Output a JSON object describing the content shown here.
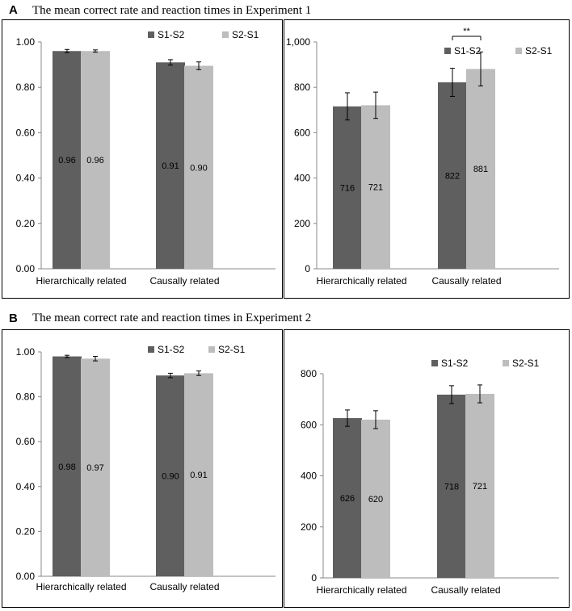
{
  "sections": [
    {
      "letter": "A",
      "title": "The mean correct rate and reaction times in Experiment 1"
    },
    {
      "letter": "B",
      "title": "The mean correct rate and reaction times in Experiment 2"
    }
  ],
  "colors": {
    "S1-S2": "#5f5f5f",
    "S2-S1": "#bdbdbd",
    "axis": "#888888"
  },
  "chart_data": [
    {
      "type": "bar",
      "categories": [
        "Hierarchically related",
        "Causally related"
      ],
      "series": [
        {
          "name": "S1-S2",
          "values": [
            0.96,
            0.91
          ],
          "errors": [
            0.007,
            0.012
          ],
          "labels": [
            "0.96",
            "0.91"
          ]
        },
        {
          "name": "S2-S1",
          "values": [
            0.96,
            0.895
          ],
          "errors": [
            0.005,
            0.017
          ],
          "labels": [
            "0.96",
            "0.90"
          ]
        }
      ],
      "ylim": [
        0,
        1.0
      ],
      "yticks": [
        "0.00",
        "0.20",
        "0.40",
        "0.60",
        "0.80",
        "1.00"
      ],
      "ytick_values": [
        0,
        0.2,
        0.4,
        0.6,
        0.8,
        1.0
      ],
      "legend": "top-right"
    },
    {
      "type": "bar",
      "categories": [
        "Hierarchically related",
        "Causally related"
      ],
      "series": [
        {
          "name": "S1-S2",
          "values": [
            716,
            822
          ],
          "errors": [
            60,
            62
          ],
          "labels": [
            "716",
            "822"
          ]
        },
        {
          "name": "S2-S1",
          "values": [
            721,
            881
          ],
          "errors": [
            58,
            75
          ],
          "labels": [
            "721",
            "881"
          ]
        }
      ],
      "ylim": [
        0,
        1000
      ],
      "yticks": [
        "0",
        "200",
        "400",
        "600",
        "800",
        "1,000"
      ],
      "ytick_values": [
        0,
        200,
        400,
        600,
        800,
        1000
      ],
      "legend": "top-right",
      "annotation": {
        "text": "**",
        "category_index": 1
      }
    },
    {
      "type": "bar",
      "categories": [
        "Hierarchically related",
        "Causally related"
      ],
      "series": [
        {
          "name": "S1-S2",
          "values": [
            0.98,
            0.895
          ],
          "errors": [
            0.005,
            0.01
          ],
          "labels": [
            "0.98",
            "0.90"
          ]
        },
        {
          "name": "S2-S1",
          "values": [
            0.97,
            0.905
          ],
          "errors": [
            0.01,
            0.01
          ],
          "labels": [
            "0.97",
            "0.91"
          ]
        }
      ],
      "ylim": [
        0,
        1.0
      ],
      "yticks": [
        "0.00",
        "0.20",
        "0.40",
        "0.60",
        "0.80",
        "1.00"
      ],
      "ytick_values": [
        0,
        0.2,
        0.4,
        0.6,
        0.8,
        1.0
      ],
      "legend": "top-right"
    },
    {
      "type": "bar",
      "categories": [
        "Hierarchically related",
        "Causally related"
      ],
      "series": [
        {
          "name": "S1-S2",
          "values": [
            626,
            718
          ],
          "errors": [
            32,
            35
          ],
          "labels": [
            "626",
            "718"
          ]
        },
        {
          "name": "S2-S1",
          "values": [
            620,
            721
          ],
          "errors": [
            35,
            35
          ],
          "labels": [
            "620",
            "721"
          ]
        }
      ],
      "ylim": [
        0,
        800
      ],
      "yticks": [
        "0",
        "200",
        "400",
        "600",
        "800"
      ],
      "ytick_values": [
        0,
        200,
        400,
        600,
        800
      ],
      "legend": "top-right"
    }
  ]
}
